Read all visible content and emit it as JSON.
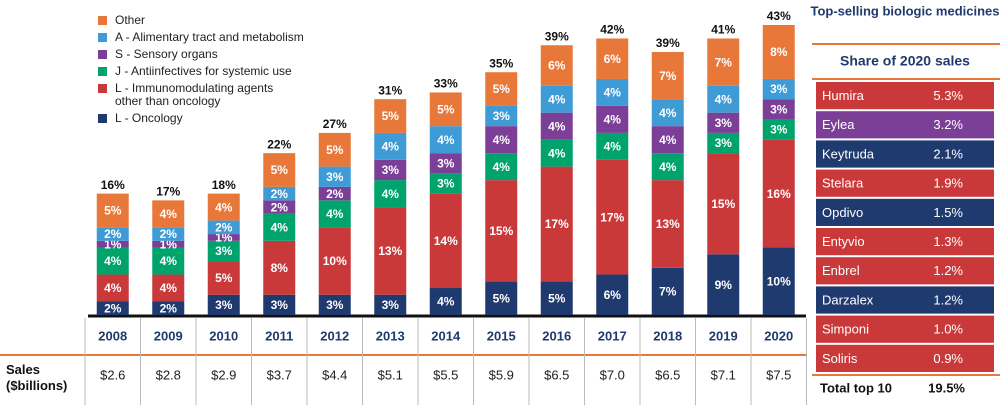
{
  "chart_data": {
    "type": "bar",
    "categories": [
      "2008",
      "2009",
      "2010",
      "2011",
      "2012",
      "2013",
      "2014",
      "2015",
      "2016",
      "2017",
      "2018",
      "2019",
      "2020"
    ],
    "series": [
      {
        "name": "L - Oncology",
        "color": "#1f3a6e",
        "values": [
          2,
          2,
          3,
          3,
          3,
          3,
          4,
          5,
          5,
          6,
          7,
          9,
          10
        ],
        "value_labels": [
          "2%",
          "2%",
          "3%",
          "3%",
          "3%",
          "3%",
          "4%",
          "5%",
          "5%",
          "6%",
          "7%",
          "9%",
          "10%"
        ]
      },
      {
        "name": "L - Immunomodulating agents other than oncology",
        "color": "#c9393a",
        "values": [
          4,
          4,
          5,
          8,
          10,
          13,
          14,
          15,
          17,
          17,
          13,
          15,
          16
        ],
        "value_labels": [
          "4%",
          "4%",
          "5%",
          "8%",
          "10%",
          "13%",
          "14%",
          "15%",
          "17%",
          "17%",
          "13%",
          "15%",
          "16%"
        ]
      },
      {
        "name": "J - Antiinfectives for systemic use",
        "color": "#00a36c",
        "values": [
          4,
          4,
          3,
          4,
          4,
          4,
          3,
          4,
          4,
          4,
          4,
          3,
          3
        ],
        "value_labels": [
          "4%",
          "4%",
          "3%",
          "4%",
          "4%",
          "4%",
          "3%",
          "4%",
          "4%",
          "4%",
          "4%",
          "3%",
          "3%"
        ]
      },
      {
        "name": "S - Sensory organs",
        "color": "#7b3f98",
        "values": [
          1,
          1,
          1,
          2,
          2,
          3,
          3,
          4,
          4,
          4,
          4,
          3,
          3
        ],
        "value_labels": [
          "1%",
          "1%",
          "1%",
          "2%",
          "2%",
          "3%",
          "3%",
          "4%",
          "4%",
          "4%",
          "4%",
          "3%",
          "3%"
        ]
      },
      {
        "name": "A - Alimentary tract and metabolism",
        "color": "#3e9bd6",
        "values": [
          2,
          2,
          2,
          2,
          3,
          4,
          4,
          3,
          4,
          4,
          4,
          4,
          3
        ],
        "value_labels": [
          "2%",
          "2%",
          "2%",
          "2%",
          "3%",
          "4%",
          "4%",
          "3%",
          "4%",
          "4%",
          "4%",
          "4%",
          "3%"
        ]
      },
      {
        "name": "Other",
        "color": "#e8783a",
        "values": [
          5,
          4,
          4,
          5,
          5,
          5,
          5,
          5,
          6,
          6,
          7,
          7,
          8
        ],
        "value_labels": [
          "5%",
          "4%",
          "4%",
          "5%",
          "5%",
          "5%",
          "5%",
          "5%",
          "6%",
          "6%",
          "7%",
          "7%",
          "8%"
        ]
      }
    ],
    "totals": {
      "values": [
        16,
        17,
        18,
        22,
        27,
        31,
        33,
        35,
        39,
        42,
        39,
        41,
        43
      ],
      "value_labels": [
        "16%",
        "17%",
        "18%",
        "22%",
        "27%",
        "31%",
        "33%",
        "35%",
        "39%",
        "42%",
        "39%",
        "41%",
        "43%"
      ]
    },
    "sales": {
      "label": "Sales ($billions)",
      "values": [
        "$2.6",
        "$2.8",
        "$2.9",
        "$3.7",
        "$4.4",
        "$5.1",
        "$5.5",
        "$5.9",
        "$6.5",
        "$7.0",
        "$6.5",
        "$7.1",
        "$7.5"
      ]
    }
  },
  "side_table": {
    "title": "Top-selling biologic medicines",
    "subtitle": "Share of 2020 sales",
    "rows": [
      {
        "name": "Humira",
        "share": "5.3%",
        "color": "#c9393a"
      },
      {
        "name": "Eylea",
        "share": "3.2%",
        "color": "#7b3f98"
      },
      {
        "name": "Keytruda",
        "share": "2.1%",
        "color": "#1f3a6e"
      },
      {
        "name": "Stelara",
        "share": "1.9%",
        "color": "#c9393a"
      },
      {
        "name": "Opdivo",
        "share": "1.5%",
        "color": "#1f3a6e"
      },
      {
        "name": "Entyvio",
        "share": "1.3%",
        "color": "#c9393a"
      },
      {
        "name": "Enbrel",
        "share": "1.2%",
        "color": "#c9393a"
      },
      {
        "name": "Darzalex",
        "share": "1.2%",
        "color": "#1f3a6e"
      },
      {
        "name": "Simponi",
        "share": "1.0%",
        "color": "#c9393a"
      },
      {
        "name": "Soliris",
        "share": "0.9%",
        "color": "#c9393a"
      }
    ],
    "total": {
      "label": "Total top 10",
      "share": "19.5%"
    }
  }
}
